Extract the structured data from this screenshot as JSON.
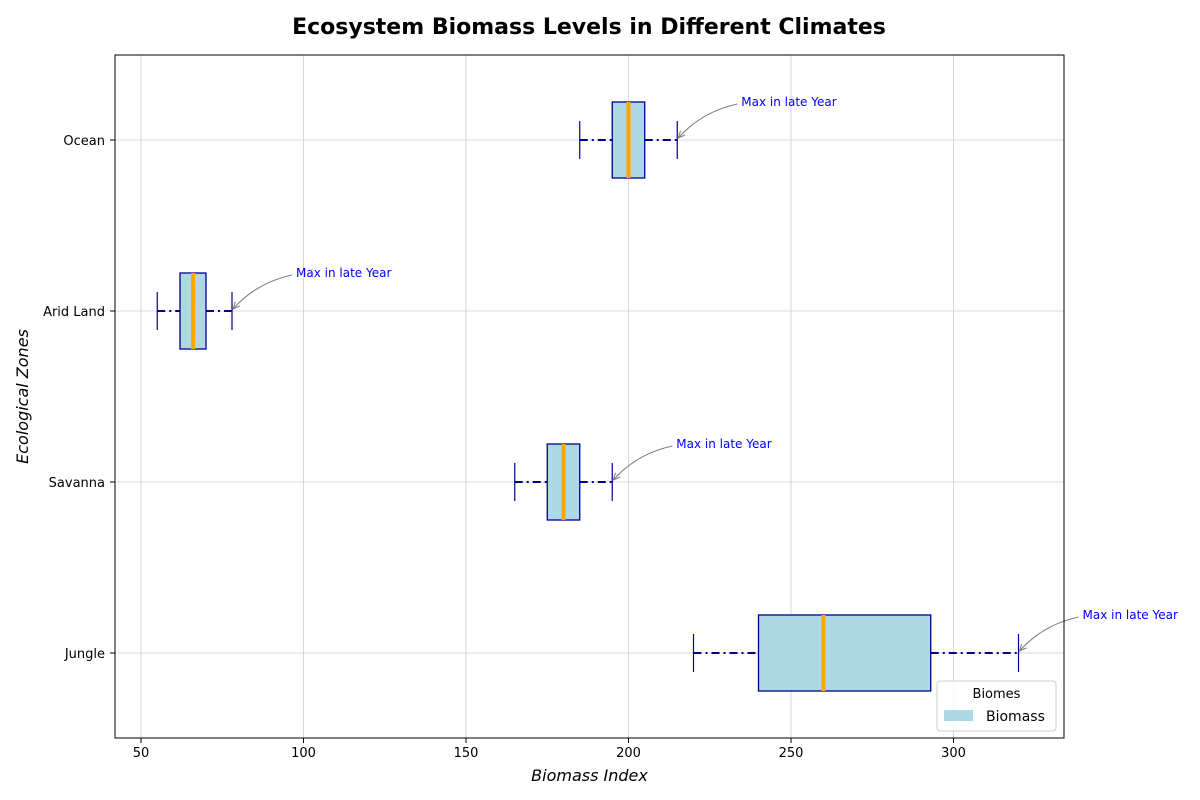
{
  "chart_data": {
    "type": "boxplot",
    "orientation": "horizontal",
    "title": "Ecosystem Biomass Levels in Different Climates",
    "xlabel": "Biomass Index",
    "ylabel": "Ecological Zones",
    "xlim": [
      42,
      334
    ],
    "xticks": [
      50,
      100,
      150,
      200,
      250,
      300
    ],
    "grid": true,
    "categories": [
      "Jungle",
      "Savanna",
      "Arid Land",
      "Ocean"
    ],
    "boxes": [
      {
        "category": "Jungle",
        "min": 220,
        "q1": 240,
        "median": 260,
        "q3": 293,
        "max": 320
      },
      {
        "category": "Savanna",
        "min": 165,
        "q1": 175,
        "median": 180,
        "q3": 185,
        "max": 195
      },
      {
        "category": "Arid Land",
        "min": 55,
        "q1": 62,
        "median": 66,
        "q3": 70,
        "max": 78
      },
      {
        "category": "Ocean",
        "min": 185,
        "q1": 195,
        "median": 200,
        "q3": 205,
        "max": 215
      }
    ],
    "annotations": [
      {
        "category": "Jungle",
        "text": "Max in late Year",
        "x": 320
      },
      {
        "category": "Savanna",
        "text": "Max in late Year",
        "x": 195
      },
      {
        "category": "Arid Land",
        "text": "Max in late Year",
        "x": 78
      },
      {
        "category": "Ocean",
        "text": "Max in late Year",
        "x": 215
      }
    ],
    "legend": {
      "title": "Biomes",
      "entries": [
        "Biomass"
      ],
      "placement": "bottom-right"
    },
    "colors": {
      "box_fill": "#add8e6",
      "box_edge": "#00008b",
      "median": "#ffa500",
      "whisker": "#00008b",
      "annotation": "#0000ff",
      "arrow": "#808080",
      "grid": "#cccccc"
    }
  }
}
